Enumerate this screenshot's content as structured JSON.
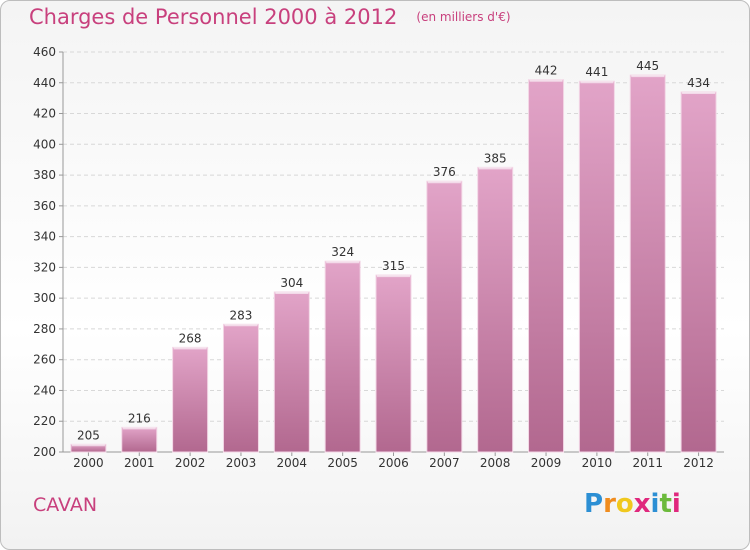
{
  "title": "Charges de Personnel 2000 à 2012",
  "subtitle": "(en milliers d'€)",
  "place": "CAVAN",
  "logo": {
    "text": "Proxiti",
    "letters": [
      {
        "ch": "P",
        "color": "#2c8fd4"
      },
      {
        "ch": "r",
        "color": "#f08c1e"
      },
      {
        "ch": "o",
        "color": "#f0c81e"
      },
      {
        "ch": "x",
        "color": "#e0287d"
      },
      {
        "ch": "i",
        "color": "#2c8fd4"
      },
      {
        "ch": "t",
        "color": "#6cba3c"
      },
      {
        "ch": "i",
        "color": "#e0287d"
      }
    ]
  },
  "colors": {
    "bar": "#c8709c",
    "accent": "#c8407d"
  },
  "chart_data": {
    "type": "bar",
    "categories": [
      "2000",
      "2001",
      "2002",
      "2003",
      "2004",
      "2005",
      "2006",
      "2007",
      "2008",
      "2009",
      "2010",
      "2011",
      "2012"
    ],
    "values": [
      205,
      216,
      268,
      283,
      304,
      324,
      315,
      376,
      385,
      442,
      441,
      445,
      434
    ],
    "ylim": [
      200,
      460
    ],
    "yticks": [
      200,
      220,
      240,
      260,
      280,
      300,
      320,
      340,
      360,
      380,
      400,
      420,
      440,
      460
    ],
    "grid": true,
    "data_labels": true
  }
}
